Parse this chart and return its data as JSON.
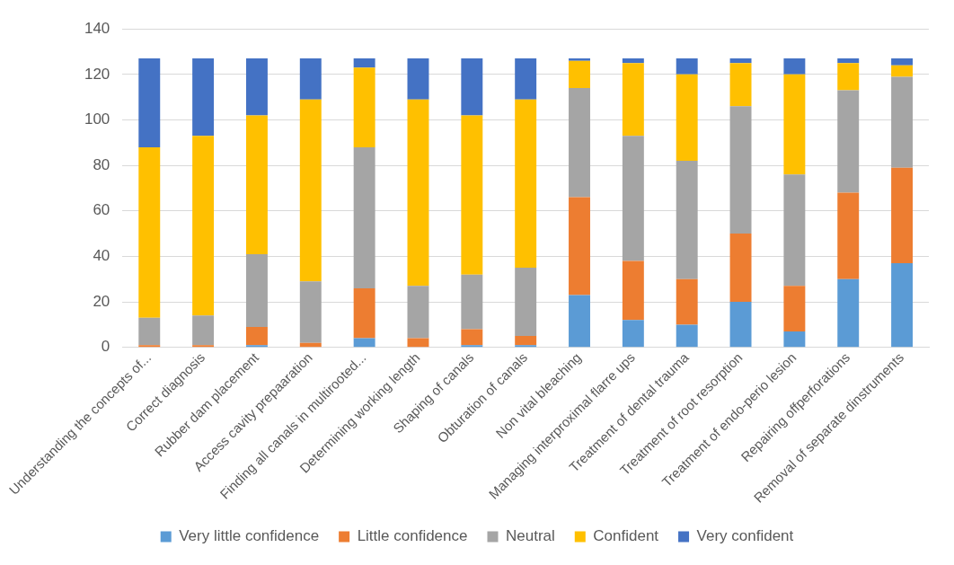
{
  "chart_data": {
    "type": "bar",
    "stacked": true,
    "categories": [
      "Understanding the concepts of...",
      "Correct diagnosis",
      "Rubber dam placement",
      "Access cavity prepaaration",
      "Finding all canals in multirooted...",
      "Determining working length",
      "Shaping of canals",
      "Obturation of canals",
      "Non vital bleaching",
      "Managing interproximal flarre ups",
      "Treatment of dental trauma",
      "Treatment of root resorption",
      "Treatment of endo-perio lesion",
      "Repairing offperforations",
      "Removal of separate dinstruments"
    ],
    "series": [
      {
        "name": "Very little confidence",
        "color": "#5b9bd5",
        "values": [
          0,
          0,
          1,
          0,
          4,
          0,
          1,
          1,
          23,
          12,
          10,
          20,
          7,
          30,
          37
        ]
      },
      {
        "name": "Little confidence",
        "color": "#ed7d31",
        "values": [
          1,
          1,
          8,
          2,
          22,
          4,
          7,
          4,
          43,
          26,
          20,
          30,
          20,
          38,
          42
        ]
      },
      {
        "name": "Neutral",
        "color": "#a5a5a5",
        "values": [
          12,
          13,
          32,
          27,
          62,
          23,
          24,
          30,
          48,
          55,
          52,
          56,
          49,
          45,
          40
        ]
      },
      {
        "name": "Confident",
        "color": "#ffc000",
        "values": [
          75,
          79,
          61,
          80,
          35,
          82,
          70,
          74,
          12,
          32,
          38,
          19,
          44,
          12,
          5
        ]
      },
      {
        "name": "Very confident",
        "color": "#4472c4",
        "values": [
          39,
          34,
          25,
          18,
          4,
          18,
          25,
          18,
          1,
          2,
          7,
          2,
          7,
          2,
          3
        ]
      }
    ],
    "ylim": [
      0,
      140
    ],
    "yticks": [
      0,
      20,
      40,
      60,
      80,
      100,
      120,
      140
    ],
    "grid": "y",
    "legend": "bottom"
  }
}
